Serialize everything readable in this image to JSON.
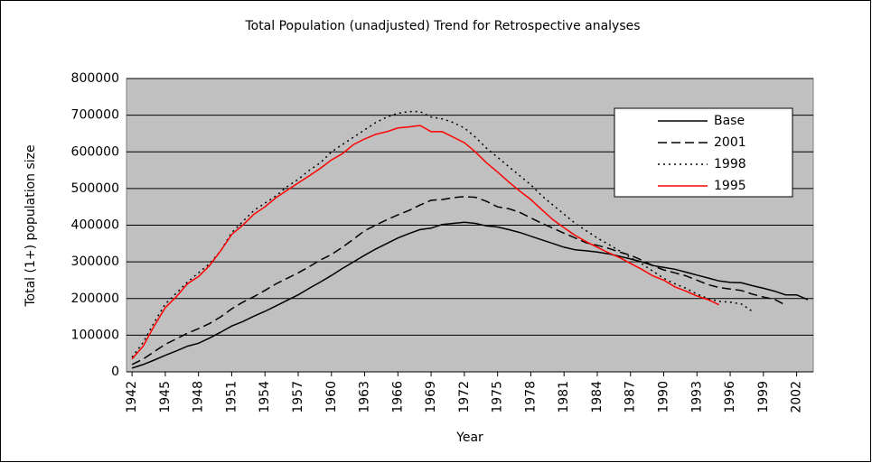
{
  "chart_data": {
    "type": "line",
    "title": "Total Population (unadjusted) Trend for Retrospective analyses",
    "x_label": "Year",
    "y_label": "Total (1+) population size",
    "x": [
      1942,
      1943,
      1944,
      1945,
      1946,
      1947,
      1948,
      1949,
      1950,
      1951,
      1952,
      1953,
      1954,
      1955,
      1956,
      1957,
      1958,
      1959,
      1960,
      1961,
      1962,
      1963,
      1964,
      1965,
      1966,
      1967,
      1968,
      1969,
      1970,
      1971,
      1972,
      1973,
      1974,
      1975,
      1976,
      1977,
      1978,
      1979,
      1980,
      1981,
      1982,
      1983,
      1984,
      1985,
      1986,
      1987,
      1988,
      1989,
      1990,
      1991,
      1992,
      1993,
      1994,
      1995,
      1996,
      1997,
      1998,
      1999,
      2000,
      2001,
      2002,
      2003
    ],
    "xlim": [
      1941.5,
      2003.5
    ],
    "xticks": [
      1942,
      1945,
      1948,
      1951,
      1954,
      1957,
      1960,
      1963,
      1966,
      1969,
      1972,
      1975,
      1978,
      1981,
      1984,
      1987,
      1990,
      1993,
      1996,
      1999,
      2002
    ],
    "ylim": [
      0,
      800000
    ],
    "yticks": [
      0,
      100000,
      200000,
      300000,
      400000,
      500000,
      600000,
      700000,
      800000
    ],
    "grid": true,
    "plot_background": "#c0c0c0",
    "legend": "upper right",
    "series": [
      {
        "name": "Base",
        "color": "#000000",
        "style": "solid",
        "values": [
          10000,
          20000,
          32000,
          45000,
          57000,
          70000,
          78000,
          92000,
          108000,
          125000,
          137000,
          152000,
          165000,
          180000,
          195000,
          210000,
          228000,
          245000,
          263000,
          282000,
          300000,
          318000,
          335000,
          350000,
          365000,
          377000,
          388000,
          392000,
          402000,
          405000,
          408000,
          405000,
          398000,
          395000,
          388000,
          380000,
          370000,
          360000,
          350000,
          340000,
          333000,
          330000,
          327000,
          322000,
          315000,
          308000,
          300000,
          290000,
          285000,
          280000,
          272000,
          264000,
          256000,
          248000,
          244000,
          243000,
          235000,
          228000,
          220000,
          210000,
          210000,
          197000
        ]
      },
      {
        "name": "2001",
        "color": "#000000",
        "style": "dashed",
        "values": [
          20000,
          35000,
          55000,
          75000,
          90000,
          105000,
          118000,
          132000,
          150000,
          172000,
          190000,
          205000,
          222000,
          240000,
          255000,
          270000,
          287000,
          305000,
          320000,
          340000,
          362000,
          385000,
          400000,
          415000,
          428000,
          440000,
          455000,
          468000,
          470000,
          475000,
          478000,
          476000,
          465000,
          450000,
          445000,
          435000,
          420000,
          405000,
          392000,
          378000,
          365000,
          352000,
          345000,
          337000,
          327000,
          318000,
          305000,
          290000,
          278000,
          270000,
          262000,
          250000,
          238000,
          230000,
          226000,
          222000,
          212000,
          204000,
          198000,
          182000,
          null,
          null
        ]
      },
      {
        "name": "1998",
        "color": "#000000",
        "style": "dotted",
        "values": [
          40000,
          80000,
          135000,
          185000,
          215000,
          245000,
          270000,
          295000,
          330000,
          380000,
          410000,
          440000,
          460000,
          480000,
          505000,
          525000,
          550000,
          570000,
          600000,
          620000,
          640000,
          660000,
          680000,
          695000,
          705000,
          710000,
          710000,
          695000,
          690000,
          680000,
          665000,
          640000,
          610000,
          585000,
          560000,
          535000,
          510000,
          480000,
          455000,
          430000,
          405000,
          385000,
          365000,
          348000,
          330000,
          312000,
          295000,
          275000,
          255000,
          240000,
          228000,
          212000,
          200000,
          192000,
          190000,
          185000,
          165000,
          null,
          null,
          null,
          null,
          null
        ]
      },
      {
        "name": "1995",
        "color": "#ff0000",
        "style": "solid",
        "values": [
          35000,
          70000,
          125000,
          175000,
          205000,
          240000,
          260000,
          290000,
          330000,
          375000,
          400000,
          430000,
          450000,
          475000,
          495000,
          515000,
          535000,
          555000,
          578000,
          595000,
          620000,
          635000,
          648000,
          655000,
          665000,
          668000,
          672000,
          655000,
          655000,
          640000,
          625000,
          600000,
          570000,
          545000,
          518000,
          493000,
          470000,
          442000,
          415000,
          393000,
          372000,
          355000,
          340000,
          325000,
          312000,
          296000,
          280000,
          262000,
          250000,
          232000,
          220000,
          207000,
          197000,
          183000,
          null,
          null,
          null,
          null,
          null,
          null,
          null,
          null
        ]
      }
    ]
  }
}
